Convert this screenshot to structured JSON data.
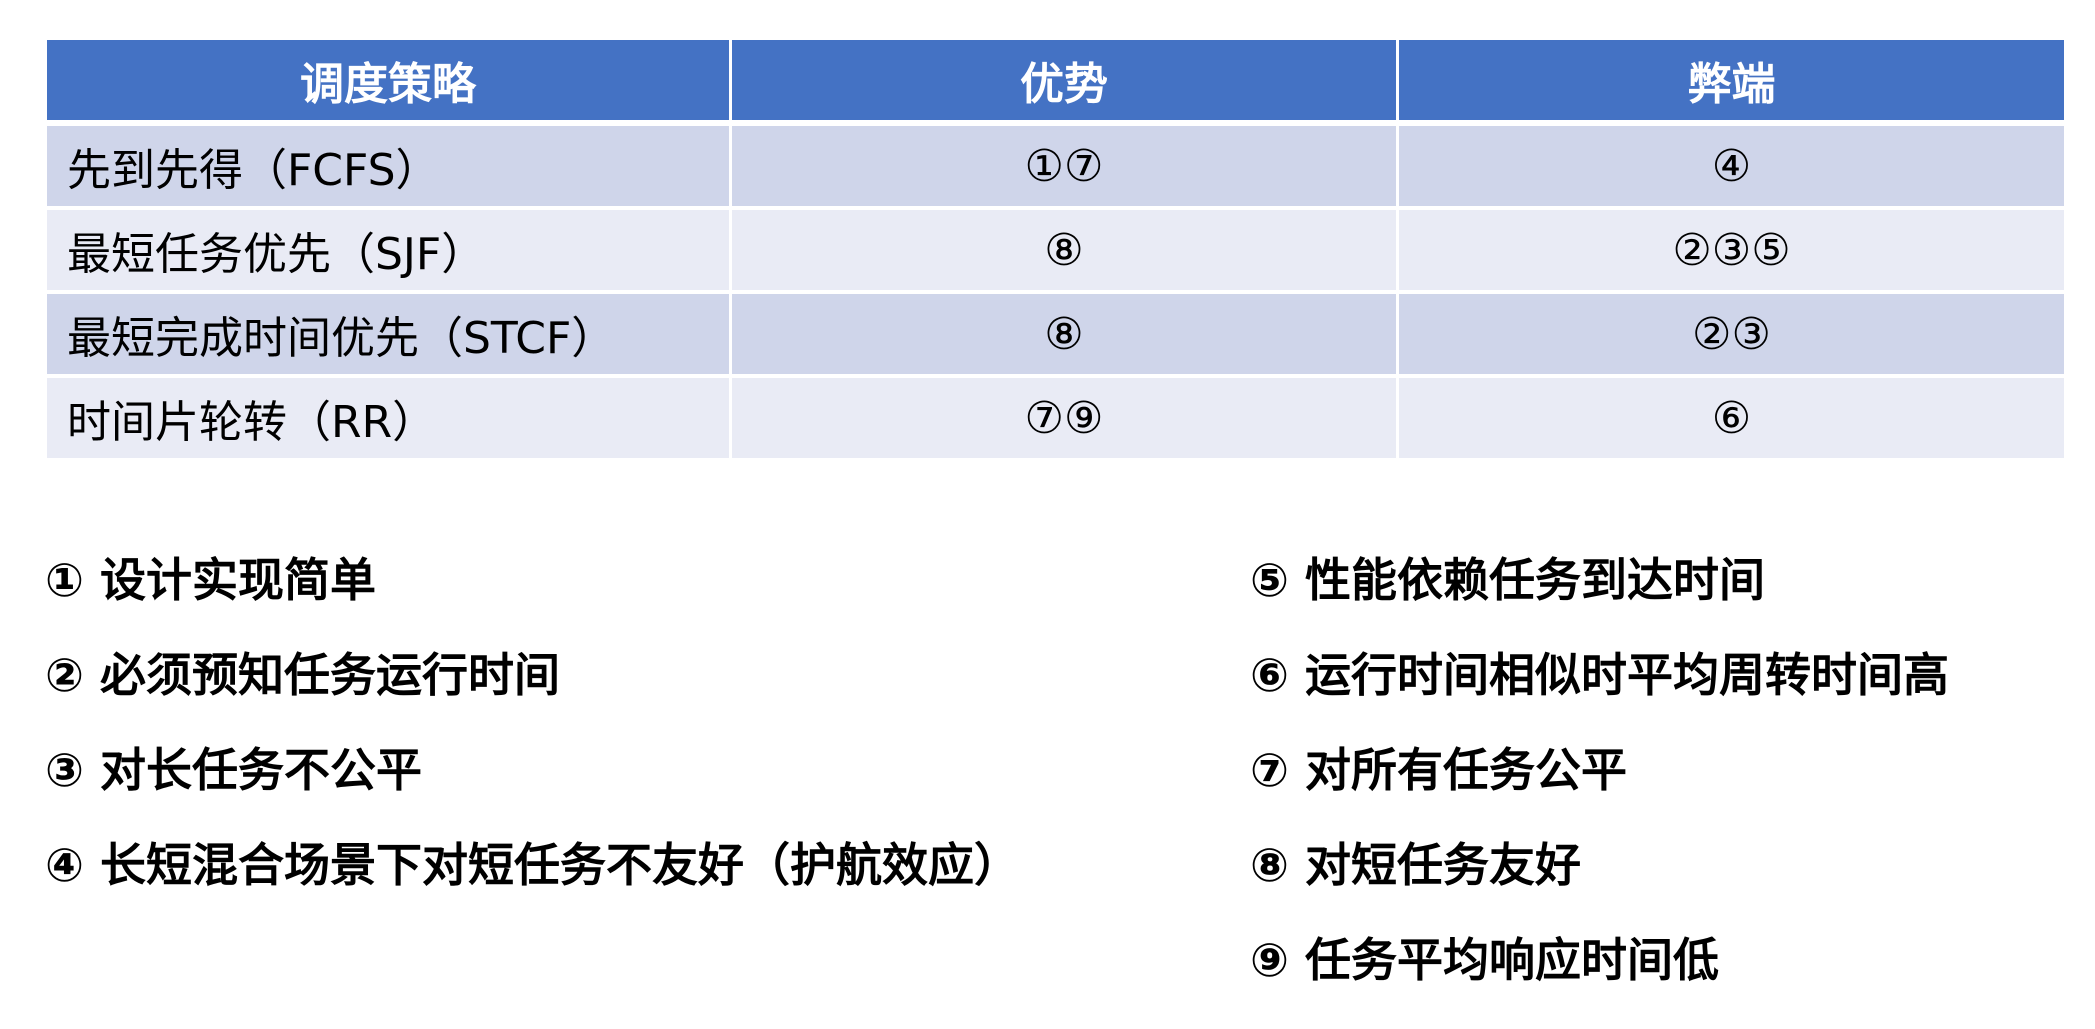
{
  "colors": {
    "header": "#4472C4",
    "row_odd": "#CFD5EA",
    "row_even": "#E9EBF5"
  },
  "table": {
    "headers": [
      "调度策略",
      "优势",
      "弊端"
    ],
    "rows": [
      [
        "先到先得（FCFS）",
        "①⑦",
        "④"
      ],
      [
        "最短任务优先（SJF）",
        "⑧",
        "②③⑤"
      ],
      [
        "最短完成时间优先（STCF）",
        "⑧",
        "②③"
      ],
      [
        "时间片轮转（RR）",
        "⑦⑨",
        "⑥"
      ]
    ]
  },
  "legend": {
    "left": [
      "① 设计实现简单",
      "② 必须预知任务运行时间",
      "③ 对长任务不公平",
      "④ 长短混合场景下对短任务不友好（护航效应）"
    ],
    "right": [
      "⑤ 性能依赖任务到达时间",
      "⑥ 运行时间相似时平均周转时间高",
      "⑦ 对所有任务公平",
      "⑧ 对短任务友好",
      "⑨ 任务平均响应时间低"
    ]
  }
}
